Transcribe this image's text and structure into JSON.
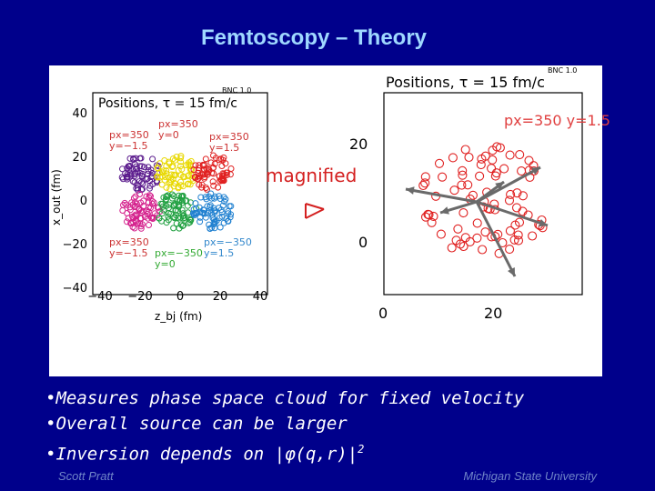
{
  "slide": {
    "title": "Femtoscopy – Theory",
    "bullets": [
      {
        "prefix": "•Measures phase space cloud for fixed velocity",
        "suffix": ""
      },
      {
        "prefix": "•Overall source can be larger",
        "suffix": ""
      },
      {
        "prefix": "•Inversion depends on |φ(q,r)|",
        "suffix": "2"
      }
    ],
    "footer_left": "Scott Pratt",
    "footer_right": "Michigan State University"
  },
  "figure": {
    "left_plot": {
      "title": "Positions, τ = 15 fm/c",
      "tag": "BNC 1.0",
      "y_ticks": [
        "40",
        "20",
        "0",
        "−20",
        "−40"
      ],
      "x_ticks": [
        "−40",
        "−20",
        "0",
        "20",
        "40"
      ],
      "ylabel": "x_out (fm)",
      "xlabel": "z_bj (fm)",
      "cluster_labels": [
        {
          "text": "px=350 y=−1.5",
          "color": "#cc3333"
        },
        {
          "text": "px=350 y=0",
          "color": "#cc3333"
        },
        {
          "text": "px=350 y=1.5",
          "color": "#cc3333"
        },
        {
          "text": "px=350 y=−1.5",
          "color": "#cc3333"
        },
        {
          "text": "px=−350 y=0",
          "color": "#33aa33"
        },
        {
          "text": "px=−350 y=1.5",
          "color": "#3388cc"
        }
      ]
    },
    "magnified_label": "magnified",
    "right_plot": {
      "title": "Positions, τ = 15 fm/c",
      "tag": "BNC 1.0",
      "y_ticks": [
        "20",
        "0"
      ],
      "x_ticks": [
        "0",
        "20"
      ],
      "label": "px=350 y=1.5"
    },
    "colors": {
      "purple": "#5a1a8c",
      "yellow": "#e8d800",
      "red": "#e02020",
      "magenta": "#d4208c",
      "green": "#20a040",
      "blue": "#2080d0",
      "label_red": "#e04040",
      "arrow": "#6a6a6a"
    }
  }
}
